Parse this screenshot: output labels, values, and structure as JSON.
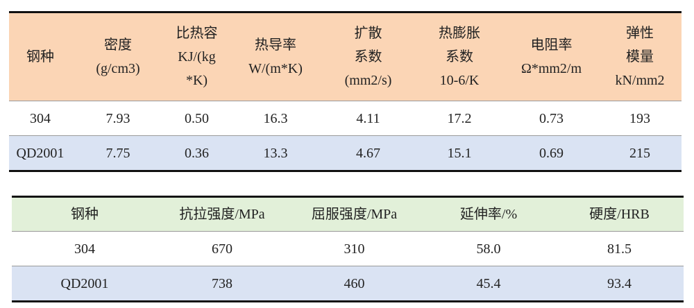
{
  "colors": {
    "table1_header": "#fbd5b5",
    "table2_header": "#e2f0d9",
    "alt_row": "#dae3f3"
  },
  "table1": {
    "headers": [
      [
        "钢种"
      ],
      [
        "密度",
        "(g/cm3)"
      ],
      [
        "比热容",
        "KJ/(kg",
        "*K)"
      ],
      [
        "热导率",
        "W/(m*K)"
      ],
      [
        "扩散",
        "系数",
        "(mm2/s)"
      ],
      [
        "热膨胀",
        "系数",
        "10-6/K"
      ],
      [
        "电阻率",
        "Ω*mm2/m"
      ],
      [
        "弹性",
        "模量",
        "kN/mm2"
      ]
    ],
    "rows": [
      [
        "304",
        "7.93",
        "0.50",
        "16.3",
        "4.11",
        "17.2",
        "0.73",
        "193"
      ],
      [
        "QD2001",
        "7.75",
        "0.36",
        "13.3",
        "4.67",
        "15.1",
        "0.69",
        "215"
      ]
    ]
  },
  "table2": {
    "headers": [
      "钢种",
      "抗拉强度/MPa",
      "屈服强度/MPa",
      "延伸率/%",
      "硬度/HRB"
    ],
    "rows": [
      [
        "304",
        "670",
        "310",
        "58.0",
        "81.5"
      ],
      [
        "QD2001",
        "738",
        "460",
        "45.4",
        "93.4"
      ]
    ]
  }
}
